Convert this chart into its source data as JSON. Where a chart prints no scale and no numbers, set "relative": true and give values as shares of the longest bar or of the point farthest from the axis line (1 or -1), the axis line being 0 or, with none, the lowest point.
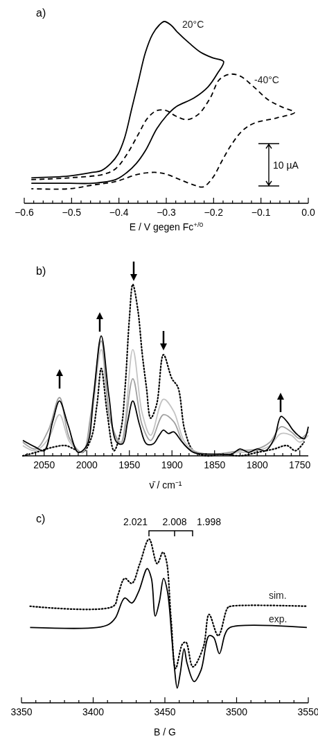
{
  "chart_data": [
    {
      "type": "line",
      "title": "a)",
      "xlabel": "E / V gegen Fc$^{+/0}$",
      "relative": true,
      "xlim": [
        -0.6,
        0.0
      ],
      "xticks": [
        {
          "value": -0.6,
          "label": "−0.6"
        },
        {
          "value": -0.58,
          "label": null
        },
        {
          "value": -0.56,
          "label": null
        },
        {
          "value": -0.54,
          "label": null
        },
        {
          "value": -0.52,
          "label": null
        },
        {
          "value": -0.5,
          "label": "−0.5"
        },
        {
          "value": -0.48,
          "label": null
        },
        {
          "value": -0.46,
          "label": null
        },
        {
          "value": -0.44,
          "label": null
        },
        {
          "value": -0.42,
          "label": null
        },
        {
          "value": -0.4,
          "label": "−0.4"
        },
        {
          "value": -0.38,
          "label": null
        },
        {
          "value": -0.36,
          "label": null
        },
        {
          "value": -0.34,
          "label": null
        },
        {
          "value": -0.32,
          "label": null
        },
        {
          "value": -0.3,
          "label": "−0.3"
        },
        {
          "value": -0.28,
          "label": null
        },
        {
          "value": -0.26,
          "label": null
        },
        {
          "value": -0.24,
          "label": null
        },
        {
          "value": -0.22,
          "label": null
        },
        {
          "value": -0.2,
          "label": "−0.2"
        },
        {
          "value": -0.18,
          "label": null
        },
        {
          "value": -0.16,
          "label": null
        },
        {
          "value": -0.14,
          "label": null
        },
        {
          "value": -0.12,
          "label": null
        },
        {
          "value": -0.1,
          "label": "−0.1"
        },
        {
          "value": -0.08,
          "label": null
        },
        {
          "value": -0.06,
          "label": null
        },
        {
          "value": -0.04,
          "label": null
        },
        {
          "value": -0.02,
          "label": null
        },
        {
          "value": 0.0,
          "label": "0.0"
        }
      ],
      "annotations": [
        "10 µA"
      ],
      "series": [
        {
          "name": "20°C",
          "color": "#000000",
          "line_style": "solid",
          "x": [
            -0.585,
            -0.505,
            -0.456,
            -0.437,
            -0.417,
            -0.402,
            -0.388,
            -0.373,
            -0.359,
            -0.344,
            -0.329,
            -0.315,
            -0.304,
            -0.29,
            -0.276,
            -0.251,
            -0.227,
            -0.202,
            -0.179,
            -0.193,
            -0.212,
            -0.241,
            -0.28,
            -0.3,
            -0.32,
            -0.344,
            -0.363,
            -0.383,
            -0.407,
            -0.456,
            -0.505,
            -0.585
          ],
          "values": [
            0.14,
            0.15,
            0.17,
            0.18,
            0.22,
            0.27,
            0.36,
            0.52,
            0.67,
            0.83,
            0.93,
            0.98,
            1.0,
            0.98,
            0.94,
            0.88,
            0.83,
            0.8,
            0.78,
            0.71,
            0.64,
            0.58,
            0.53,
            0.48,
            0.41,
            0.29,
            0.22,
            0.17,
            0.13,
            0.11,
            0.11,
            0.11
          ]
        },
        {
          "name": "-40°C",
          "color": "#000000",
          "line_style": "dashed",
          "x": [
            -0.585,
            -0.505,
            -0.432,
            -0.407,
            -0.383,
            -0.359,
            -0.339,
            -0.32,
            -0.3,
            -0.28,
            -0.256,
            -0.232,
            -0.207,
            -0.188,
            -0.166,
            -0.144,
            -0.115,
            -0.085,
            -0.056,
            -0.029,
            -0.066,
            -0.115,
            -0.139,
            -0.163,
            -0.183,
            -0.202,
            -0.222,
            -0.241,
            -0.271,
            -0.3,
            -0.324,
            -0.359,
            -0.407,
            -0.456,
            -0.505,
            -0.585
          ],
          "values": [
            0.13,
            0.14,
            0.16,
            0.19,
            0.27,
            0.38,
            0.47,
            0.51,
            0.51,
            0.48,
            0.46,
            0.49,
            0.58,
            0.68,
            0.71,
            0.7,
            0.64,
            0.57,
            0.53,
            0.5,
            0.47,
            0.44,
            0.4,
            0.32,
            0.23,
            0.14,
            0.09,
            0.1,
            0.13,
            0.16,
            0.17,
            0.16,
            0.12,
            0.1,
            0.08,
            0.08
          ]
        }
      ]
    },
    {
      "type": "line",
      "title": "b)",
      "xlabel": "ν̄ / cm⁻¹",
      "relative": true,
      "xlim": [
        2075,
        1740
      ],
      "xticks": [
        {
          "value": 2070,
          "label": null
        },
        {
          "value": 2060,
          "label": null
        },
        2050,
        {
          "value": 2040,
          "label": null
        },
        {
          "value": 2030,
          "label": null
        },
        {
          "value": 2020,
          "label": null
        },
        {
          "value": 2010,
          "label": null
        },
        2000,
        {
          "value": 1990,
          "label": null
        },
        {
          "value": 1980,
          "label": null
        },
        {
          "value": 1970,
          "label": null
        },
        {
          "value": 1960,
          "label": null
        },
        1950,
        {
          "value": 1940,
          "label": null
        },
        {
          "value": 1930,
          "label": null
        },
        {
          "value": 1920,
          "label": null
        },
        {
          "value": 1910,
          "label": null
        },
        1900,
        {
          "value": 1890,
          "label": null
        },
        {
          "value": 1880,
          "label": null
        },
        {
          "value": 1870,
          "label": null
        },
        {
          "value": 1860,
          "label": null
        },
        1850,
        {
          "value": 1840,
          "label": null
        },
        {
          "value": 1830,
          "label": null
        },
        {
          "value": 1820,
          "label": null
        },
        {
          "value": 1810,
          "label": null
        },
        1800,
        {
          "value": 1790,
          "label": null
        },
        {
          "value": 1780,
          "label": null
        },
        {
          "value": 1770,
          "label": null
        },
        {
          "value": 1760,
          "label": null
        },
        1750
      ],
      "series": [
        {
          "color": "#000000",
          "line_style": "dotted",
          "x": [
            2075,
            2060,
            2040,
            2025,
            2015,
            2005,
            1995,
            1988,
            1983,
            1976,
            1968,
            1960,
            1955,
            1950,
            1946,
            1940,
            1935,
            1930,
            1925,
            1918,
            1910,
            1900,
            1893,
            1885,
            1875,
            1860,
            1840,
            1820,
            1800,
            1780,
            1765,
            1755,
            1745
          ],
          "values": [
            0.0,
            0.02,
            0.05,
            0.06,
            0.04,
            0.02,
            0.1,
            0.3,
            0.51,
            0.25,
            0.03,
            0.15,
            0.4,
            0.8,
            1.0,
            0.85,
            0.6,
            0.4,
            0.22,
            0.3,
            0.59,
            0.45,
            0.4,
            0.15,
            0.03,
            0.0,
            0.01,
            0.0,
            0.02,
            0.04,
            0.06,
            0.03,
            0.08
          ]
        },
        {
          "color": "#c4c4c4",
          "line_style": "solid",
          "x": [
            2075,
            2060,
            2045,
            2032,
            2020,
            2005,
            1995,
            1983,
            1972,
            1960,
            1946,
            1935,
            1925,
            1910,
            1898,
            1885,
            1870,
            1850,
            1820,
            1800,
            1785,
            1772,
            1760,
            1750,
            1740
          ],
          "values": [
            0.06,
            0.03,
            0.1,
            0.24,
            0.08,
            0.02,
            0.2,
            0.62,
            0.2,
            0.08,
            0.62,
            0.25,
            0.12,
            0.33,
            0.26,
            0.08,
            0.02,
            0.01,
            0.02,
            0.03,
            0.06,
            0.13,
            0.12,
            0.08,
            0.12
          ]
        },
        {
          "color": "#a0a0a0",
          "line_style": "solid",
          "x": [
            2075,
            2060,
            2045,
            2032,
            2020,
            2005,
            1995,
            1983,
            1972,
            1960,
            1946,
            1935,
            1925,
            1910,
            1898,
            1885,
            1870,
            1850,
            1820,
            1800,
            1785,
            1772,
            1760,
            1750,
            1740
          ],
          "values": [
            0.08,
            0.04,
            0.15,
            0.34,
            0.1,
            0.02,
            0.25,
            0.67,
            0.2,
            0.07,
            0.45,
            0.18,
            0.09,
            0.24,
            0.2,
            0.06,
            0.02,
            0.01,
            0.03,
            0.04,
            0.08,
            0.17,
            0.14,
            0.1,
            0.14
          ]
        },
        {
          "color": "#000000",
          "line_style": "solid",
          "x": [
            2075,
            2060,
            2050,
            2040,
            2032,
            2022,
            2010,
            2000,
            1992,
            1983,
            1974,
            1965,
            1958,
            1952,
            1946,
            1938,
            1930,
            1922,
            1915,
            1910,
            1904,
            1898,
            1888,
            1875,
            1860,
            1845,
            1830,
            1820,
            1810,
            1800,
            1790,
            1780,
            1772,
            1765,
            1758,
            1752,
            1745,
            1740
          ],
          "values": [
            0.09,
            0.05,
            0.03,
            0.2,
            0.32,
            0.18,
            0.02,
            0.06,
            0.35,
            0.7,
            0.35,
            0.08,
            0.07,
            0.2,
            0.32,
            0.18,
            0.07,
            0.07,
            0.12,
            0.15,
            0.13,
            0.14,
            0.08,
            0.02,
            0.01,
            0.01,
            0.01,
            0.04,
            0.02,
            0.04,
            0.03,
            0.1,
            0.23,
            0.2,
            0.15,
            0.12,
            0.1,
            0.17
          ]
        }
      ]
    },
    {
      "type": "line",
      "title": "c)",
      "xlabel": "B / G",
      "relative": true,
      "xlim": [
        3350,
        3550
      ],
      "xticks": [
        3350,
        {
          "value": 3360,
          "label": null
        },
        {
          "value": 3370,
          "label": null
        },
        {
          "value": 3380,
          "label": null
        },
        {
          "value": 3390,
          "label": null
        },
        3400,
        {
          "value": 3410,
          "label": null
        },
        {
          "value": 3420,
          "label": null
        },
        {
          "value": 3430,
          "label": null
        },
        {
          "value": 3440,
          "label": null
        },
        3450,
        {
          "value": 3460,
          "label": null
        },
        {
          "value": 3470,
          "label": null
        },
        {
          "value": 3480,
          "label": null
        },
        {
          "value": 3490,
          "label": null
        },
        3500,
        {
          "value": 3510,
          "label": null
        },
        {
          "value": 3520,
          "label": null
        },
        {
          "value": 3530,
          "label": null
        },
        {
          "value": 3540,
          "label": null
        },
        3550
      ],
      "annotations": [
        "2.021",
        "2.008",
        "1.998"
      ],
      "series": [
        {
          "name": "sim.",
          "color": "#000000",
          "line_style": "dotted",
          "x": [
            3356,
            3414,
            3417.3,
            3422,
            3427,
            3432.5,
            3439,
            3444.6,
            3448.6,
            3451,
            3454.3,
            3457.5,
            3462.3,
            3464.7,
            3469.5,
            3476.8,
            3480.8,
            3487.2,
            3493.7,
            3496,
            3549
          ],
          "values": [
            0.59,
            0.59,
            0.66,
            0.76,
            0.73,
            0.85,
            1.0,
            0.85,
            0.92,
            0.87,
            0.51,
            0.21,
            0.36,
            0.37,
            0.22,
            0.34,
            0.54,
            0.41,
            0.58,
            0.59,
            0.59
          ]
        },
        {
          "name": "exp.",
          "color": "#000000",
          "line_style": "solid",
          "x": [
            3356,
            3402.8,
            3411,
            3415.6,
            3422,
            3427,
            3431.7,
            3437.7,
            3440.6,
            3443.3,
            3446.2,
            3449.1,
            3451.8,
            3455,
            3456.7,
            3458.6,
            3460.7,
            3463.4,
            3465.5,
            3470.4,
            3475.2,
            3480.8,
            3484,
            3488,
            3492,
            3495.3,
            3549
          ],
          "values": [
            0.46,
            0.46,
            0.48,
            0.52,
            0.64,
            0.61,
            0.68,
            0.82,
            0.76,
            0.53,
            0.62,
            0.76,
            0.68,
            0.38,
            0.21,
            0.09,
            0.18,
            0.33,
            0.24,
            0.13,
            0.2,
            0.41,
            0.4,
            0.3,
            0.42,
            0.46,
            0.46
          ]
        }
      ]
    }
  ]
}
